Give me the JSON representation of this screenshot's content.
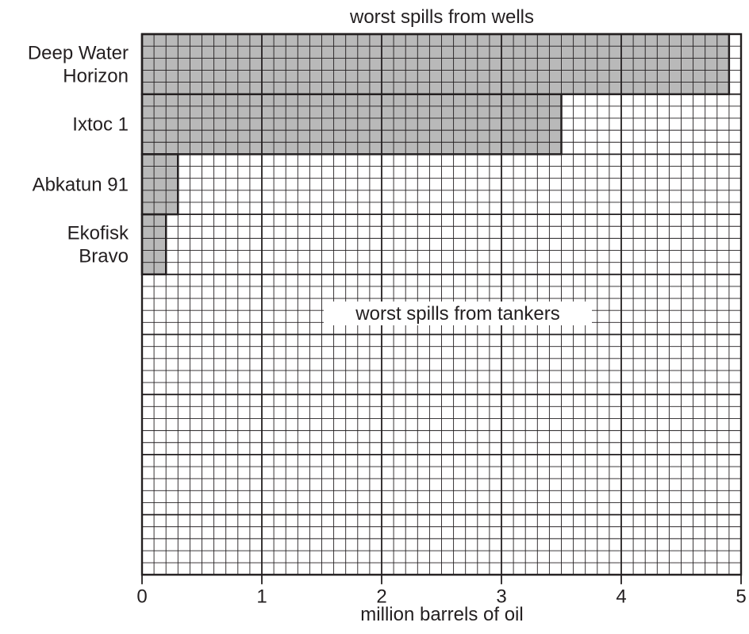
{
  "chart_data": {
    "type": "bar",
    "orientation": "horizontal",
    "title": "worst spills from wells",
    "section_label": "worst spills from tankers",
    "xlabel": "million barrels of oil",
    "ylabel": "",
    "xlim": [
      0,
      5
    ],
    "xticks": [
      "0",
      "1",
      "2",
      "3",
      "4",
      "5"
    ],
    "grid": true,
    "categories": [
      [
        "Deep Water",
        "Horizon"
      ],
      [
        "Ixtoc 1"
      ],
      [
        "Abkatun 91"
      ],
      [
        "Ekofisk",
        "Bravo"
      ]
    ],
    "values": [
      4.9,
      3.5,
      0.3,
      0.2
    ],
    "empty_rows": 5,
    "colors": {
      "bar": "#b3b3b3",
      "grid": "#231f20",
      "background": "#ffffff"
    }
  }
}
